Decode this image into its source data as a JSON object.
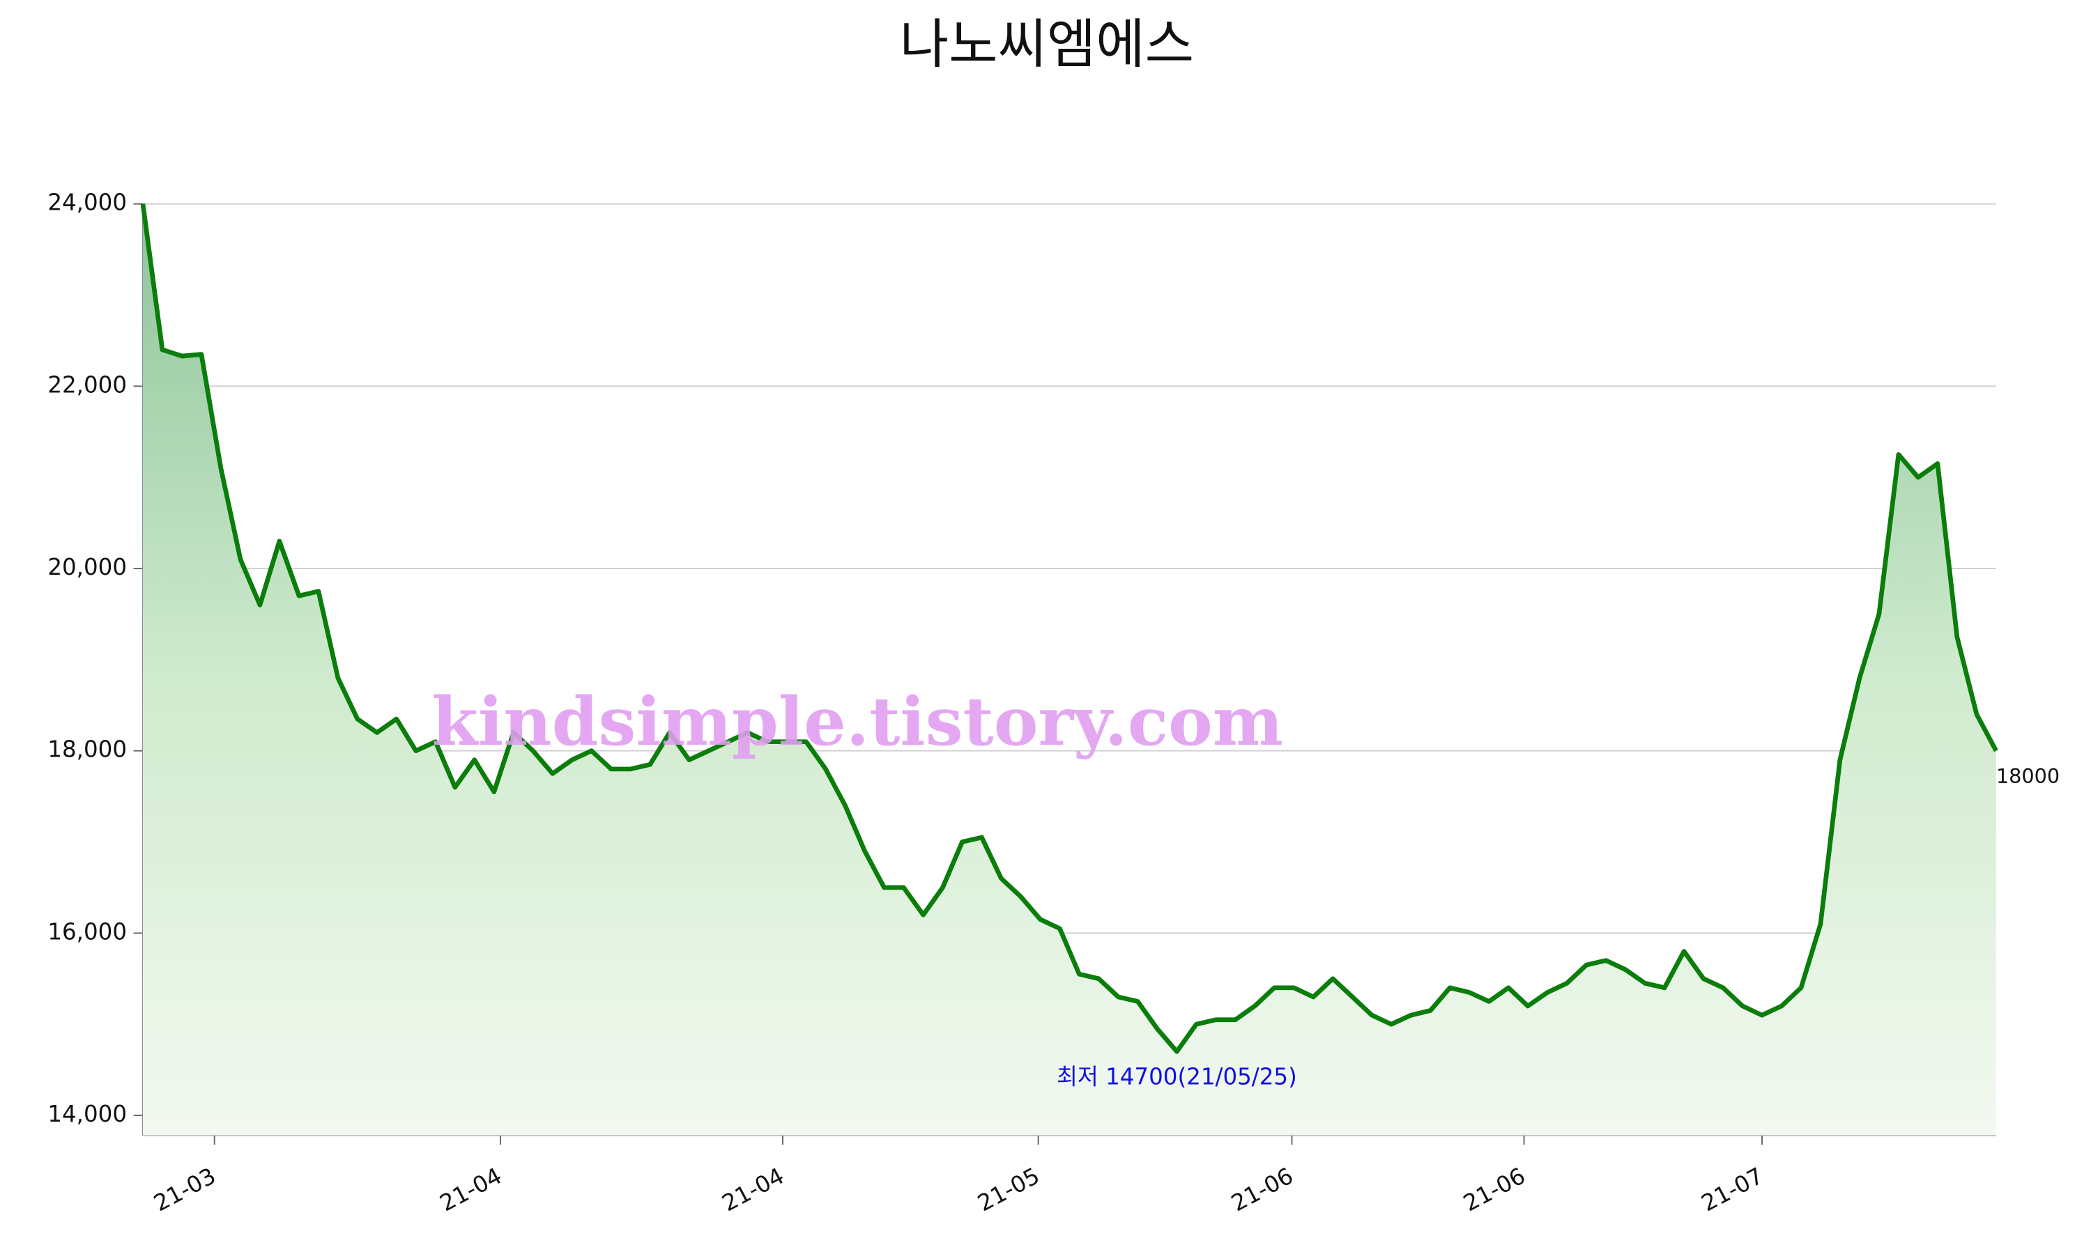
{
  "chart_data": {
    "type": "line",
    "title": "나노씨엠에스",
    "values": [
      24000,
      22400,
      22330,
      22350,
      21100,
      20100,
      19600,
      20300,
      19700,
      19750,
      18800,
      18350,
      18200,
      18350,
      18000,
      18100,
      17600,
      17900,
      17550,
      18200,
      18000,
      17750,
      17900,
      18000,
      17800,
      17800,
      17850,
      18200,
      17900,
      18000,
      18100,
      18200,
      18100,
      18100,
      18100,
      17800,
      17400,
      16900,
      16500,
      16500,
      16200,
      16500,
      17000,
      17050,
      16600,
      16400,
      16150,
      16050,
      15550,
      15500,
      15300,
      15250,
      14950,
      14700,
      15000,
      15050,
      15050,
      15200,
      15400,
      15400,
      15300,
      15500,
      15300,
      15100,
      15000,
      15100,
      15150,
      15400,
      15350,
      15250,
      15400,
      15200,
      15350,
      15450,
      15650,
      15700,
      15600,
      15450,
      15400,
      15800,
      15500,
      15400,
      15200,
      15100,
      15200,
      15400,
      16100,
      17900,
      18800,
      19500,
      21250,
      21000,
      21150,
      19250,
      18400,
      18000
    ],
    "color": "#0a7d0a",
    "xlim": [
      0,
      95
    ],
    "xticks": [
      {
        "value": 3.67,
        "label": "21-03"
      },
      {
        "value": 18.33,
        "label": "21-04"
      },
      {
        "value": 32.8,
        "label": "21-04"
      },
      {
        "value": 45.9,
        "label": "21-05"
      },
      {
        "value": 58.9,
        "label": "21-06"
      },
      {
        "value": 70.8,
        "label": "21-06"
      },
      {
        "value": 83,
        "label": "21-07"
      }
    ],
    "ylim": [
      14000,
      24000
    ],
    "yticks": [
      {
        "value": 14000,
        "label": "14,000"
      },
      {
        "value": 16000,
        "label": "16,000"
      },
      {
        "value": 18000,
        "label": "18,000"
      },
      {
        "value": 20000,
        "label": "20,000"
      },
      {
        "value": 22000,
        "label": "22,000"
      },
      {
        "value": 24000,
        "label": "24,000"
      }
    ],
    "grid": true,
    "min_annotation": "최저 14700(21/05/25)",
    "watermark": "kindsimple.tistory.com"
  }
}
